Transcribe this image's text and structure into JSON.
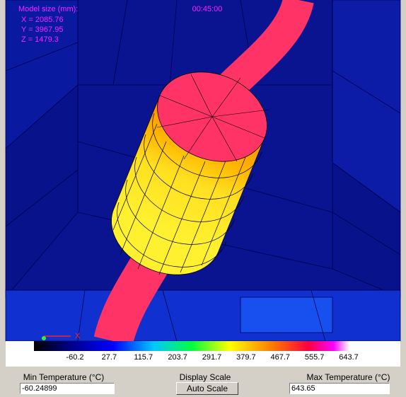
{
  "view": {
    "info_title": "Model size (mm):",
    "x_size": "X = 2085.76",
    "y_size": "Y = 3967.95",
    "z_size": "Z = 1479.3",
    "time": "00:45:00",
    "axis_x": "X"
  },
  "scale": {
    "labels": [
      "-60.2",
      "27.7",
      "115.7",
      "203.7",
      "291.7",
      "379.7",
      "467.7",
      "555.7",
      "643.7"
    ]
  },
  "controls": {
    "min_label": "Min Temperature (°C)",
    "min_value": "-60.24899",
    "display_label": "Display Scale",
    "button": "Auto Scale",
    "max_label": "Max Temperature (°C)",
    "max_value": "643.65"
  }
}
